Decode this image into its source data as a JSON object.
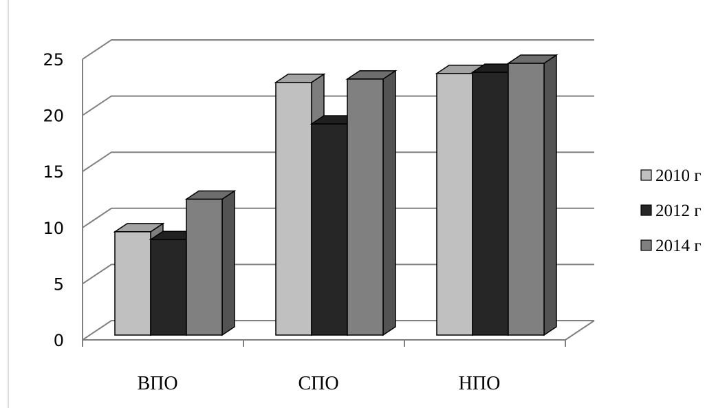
{
  "chart_data": {
    "type": "bar",
    "categories": [
      "ВПО",
      "СПО",
      "НПО"
    ],
    "series": [
      {
        "name": "2010 г",
        "values": [
          9.2,
          22.5,
          23.3
        ],
        "color": "#c0c0c0"
      },
      {
        "name": "2012 г",
        "values": [
          8.5,
          18.8,
          23.4
        ],
        "color": "#262626"
      },
      {
        "name": "2014 г",
        "values": [
          12.1,
          22.8,
          24.2
        ],
        "color": "#808080"
      }
    ],
    "ylim": [
      0,
      25
    ],
    "yticks": [
      "0",
      "5",
      "10",
      "15",
      "20",
      "25"
    ],
    "grid": true,
    "legend_position": "right",
    "style": "3d-clustered-column"
  }
}
